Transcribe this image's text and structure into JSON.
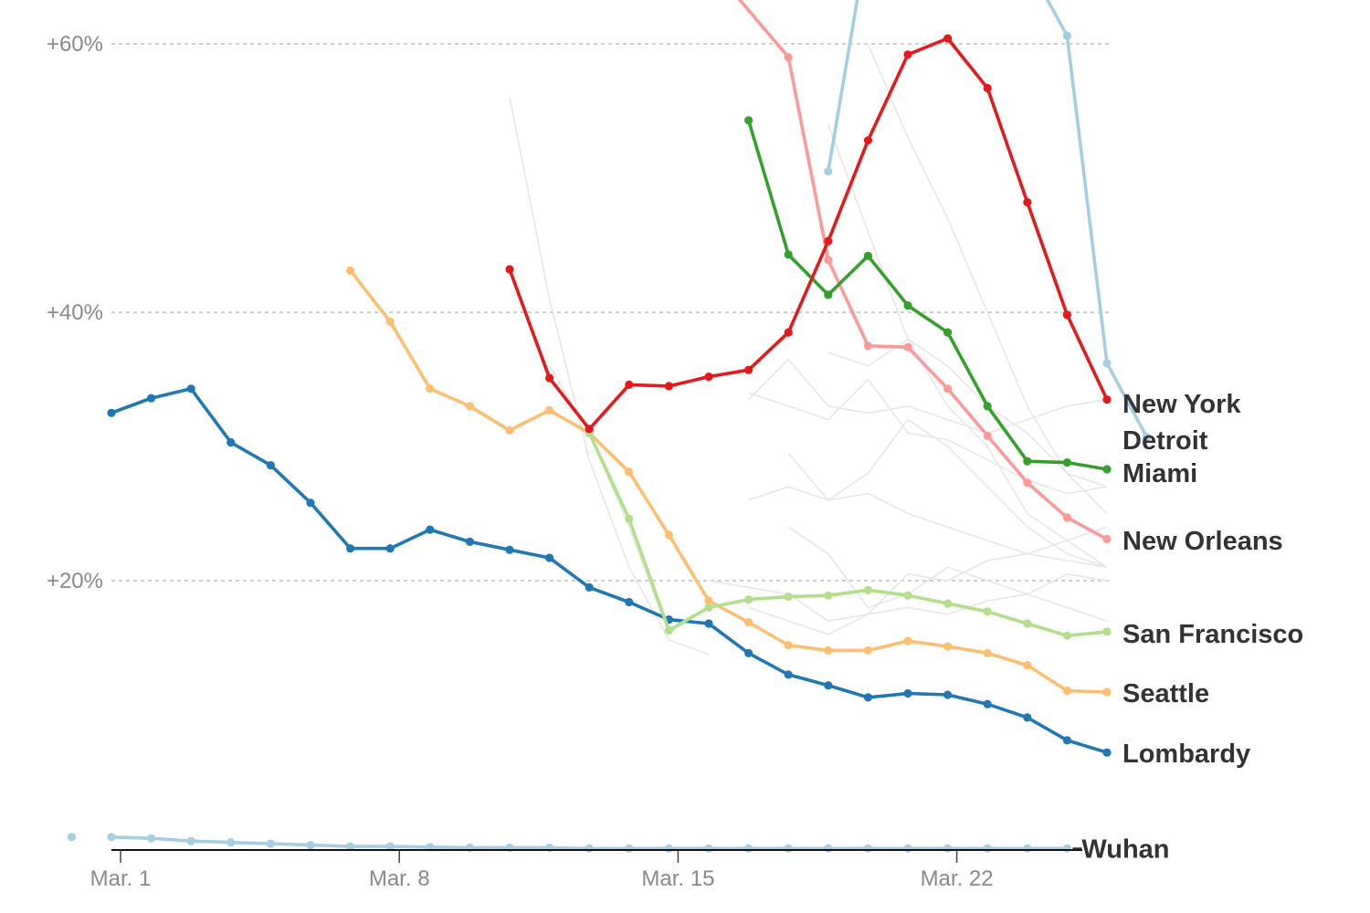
{
  "chart_data": {
    "type": "line",
    "x_unit": "date",
    "xlim": [
      "2020-02-29",
      "2020-03-29"
    ],
    "ylim": [
      0,
      61
    ],
    "y_ticks": [
      {
        "value": 20,
        "label": "+20%"
      },
      {
        "value": 40,
        "label": "+40%"
      },
      {
        "value": 60,
        "label": "+60%"
      }
    ],
    "x_ticks": [
      {
        "date": "2020-03-01",
        "label": "Mar. 1"
      },
      {
        "date": "2020-03-08",
        "label": "Mar. 8"
      },
      {
        "date": "2020-03-15",
        "label": "Mar. 15"
      },
      {
        "date": "2020-03-22",
        "label": "Mar. 22"
      }
    ],
    "grid": true,
    "legend": "inline-right",
    "series": [
      {
        "name": "New York",
        "color": "#e31a1c",
        "points": [
          [
            "2020-03-11",
            43.2
          ],
          [
            "2020-03-12",
            35.1
          ],
          [
            "2020-03-13",
            31.3
          ],
          [
            "2020-03-14",
            34.6
          ],
          [
            "2020-03-15",
            34.5
          ],
          [
            "2020-03-16",
            35.2
          ],
          [
            "2020-03-17",
            35.7
          ],
          [
            "2020-03-18",
            38.5
          ],
          [
            "2020-03-19",
            45.3
          ],
          [
            "2020-03-20",
            52.8
          ],
          [
            "2020-03-21",
            59.2
          ],
          [
            "2020-03-22",
            60.4
          ],
          [
            "2020-03-23",
            56.7
          ],
          [
            "2020-03-24",
            48.2
          ],
          [
            "2020-03-25",
            39.8
          ],
          [
            "2020-03-26",
            33.5
          ]
        ]
      },
      {
        "name": "Detroit",
        "color": "#a6cee3",
        "points": [
          [
            "2020-03-19",
            50.5
          ],
          [
            "2020-03-20",
            68.0
          ],
          [
            "2020-03-24",
            66.0
          ],
          [
            "2020-03-25",
            60.6
          ],
          [
            "2020-03-26",
            36.2
          ],
          [
            "2020-03-27",
            30.7
          ]
        ]
      },
      {
        "name": "Miami",
        "color": "#33a02c",
        "points": [
          [
            "2020-03-17",
            54.3
          ],
          [
            "2020-03-18",
            44.3
          ],
          [
            "2020-03-19",
            41.3
          ],
          [
            "2020-03-20",
            44.2
          ],
          [
            "2020-03-21",
            40.5
          ],
          [
            "2020-03-22",
            38.5
          ],
          [
            "2020-03-23",
            33.0
          ],
          [
            "2020-03-24",
            28.9
          ],
          [
            "2020-03-25",
            28.8
          ],
          [
            "2020-03-26",
            28.3
          ]
        ]
      },
      {
        "name": "New Orleans",
        "color": "#fb9a99",
        "points": [
          [
            "2020-03-16",
            66.0
          ],
          [
            "2020-03-18",
            59.0
          ],
          [
            "2020-03-19",
            43.9
          ],
          [
            "2020-03-20",
            37.5
          ],
          [
            "2020-03-21",
            37.4
          ],
          [
            "2020-03-22",
            34.3
          ],
          [
            "2020-03-23",
            30.8
          ],
          [
            "2020-03-24",
            27.3
          ],
          [
            "2020-03-25",
            24.7
          ],
          [
            "2020-03-26",
            23.1
          ]
        ]
      },
      {
        "name": "San Francisco",
        "color": "#b2df8a",
        "points": [
          [
            "2020-03-13",
            31.0
          ],
          [
            "2020-03-14",
            24.6
          ],
          [
            "2020-03-15",
            16.3
          ],
          [
            "2020-03-16",
            18.0
          ],
          [
            "2020-03-17",
            18.6
          ],
          [
            "2020-03-18",
            18.8
          ],
          [
            "2020-03-19",
            18.9
          ],
          [
            "2020-03-20",
            19.3
          ],
          [
            "2020-03-21",
            18.9
          ],
          [
            "2020-03-22",
            18.3
          ],
          [
            "2020-03-23",
            17.7
          ],
          [
            "2020-03-24",
            16.8
          ],
          [
            "2020-03-25",
            15.9
          ],
          [
            "2020-03-26",
            16.2
          ]
        ]
      },
      {
        "name": "Seattle",
        "color": "#fdbf6f",
        "points": [
          [
            "2020-03-07",
            43.1
          ],
          [
            "2020-03-08",
            39.3
          ],
          [
            "2020-03-09",
            34.3
          ],
          [
            "2020-03-10",
            33.0
          ],
          [
            "2020-03-11",
            31.2
          ],
          [
            "2020-03-12",
            32.7
          ],
          [
            "2020-03-13",
            31.0
          ],
          [
            "2020-03-14",
            28.1
          ],
          [
            "2020-03-15",
            23.4
          ],
          [
            "2020-03-16",
            18.5
          ],
          [
            "2020-03-17",
            16.9
          ],
          [
            "2020-03-18",
            15.2
          ],
          [
            "2020-03-19",
            14.8
          ],
          [
            "2020-03-20",
            14.8
          ],
          [
            "2020-03-21",
            15.5
          ],
          [
            "2020-03-22",
            15.1
          ],
          [
            "2020-03-23",
            14.6
          ],
          [
            "2020-03-24",
            13.7
          ],
          [
            "2020-03-25",
            11.8
          ],
          [
            "2020-03-26",
            11.7
          ]
        ]
      },
      {
        "name": "Lombardy",
        "color": "#1f78b4",
        "points": [
          [
            "2020-03-01",
            32.5
          ],
          [
            "2020-03-02",
            33.6
          ],
          [
            "2020-03-03",
            34.3
          ],
          [
            "2020-03-04",
            30.3
          ],
          [
            "2020-03-05",
            28.6
          ],
          [
            "2020-03-06",
            25.8
          ],
          [
            "2020-03-07",
            22.4
          ],
          [
            "2020-03-08",
            22.4
          ],
          [
            "2020-03-09",
            23.8
          ],
          [
            "2020-03-10",
            22.9
          ],
          [
            "2020-03-11",
            22.3
          ],
          [
            "2020-03-12",
            21.7
          ],
          [
            "2020-03-13",
            19.5
          ],
          [
            "2020-03-14",
            18.4
          ],
          [
            "2020-03-15",
            17.1
          ],
          [
            "2020-03-16",
            16.8
          ],
          [
            "2020-03-17",
            14.6
          ],
          [
            "2020-03-18",
            13.0
          ],
          [
            "2020-03-19",
            12.2
          ],
          [
            "2020-03-20",
            11.3
          ],
          [
            "2020-03-21",
            11.6
          ],
          [
            "2020-03-22",
            11.5
          ],
          [
            "2020-03-23",
            10.8
          ],
          [
            "2020-03-24",
            9.8
          ],
          [
            "2020-03-25",
            8.1
          ],
          [
            "2020-03-26",
            7.2
          ]
        ]
      },
      {
        "name": "Wuhan",
        "color": "#a6cee3",
        "points": [
          [
            "2020-03-01",
            0.9
          ],
          [
            "2020-03-02",
            0.8
          ],
          [
            "2020-03-03",
            0.6
          ],
          [
            "2020-03-04",
            0.5
          ],
          [
            "2020-03-05",
            0.4
          ],
          [
            "2020-03-06",
            0.3
          ],
          [
            "2020-03-07",
            0.2
          ],
          [
            "2020-03-08",
            0.2
          ],
          [
            "2020-03-09",
            0.15
          ],
          [
            "2020-03-10",
            0.1
          ],
          [
            "2020-03-11",
            0.1
          ],
          [
            "2020-03-12",
            0.1
          ],
          [
            "2020-03-13",
            0.05
          ],
          [
            "2020-03-14",
            0.05
          ],
          [
            "2020-03-15",
            0.05
          ],
          [
            "2020-03-16",
            0.05
          ],
          [
            "2020-03-17",
            0.05
          ],
          [
            "2020-03-18",
            0.05
          ],
          [
            "2020-03-19",
            0.05
          ],
          [
            "2020-03-20",
            0.05
          ],
          [
            "2020-03-21",
            0.05
          ],
          [
            "2020-03-22",
            0.05
          ],
          [
            "2020-03-23",
            0.05
          ],
          [
            "2020-03-24",
            0.05
          ],
          [
            "2020-03-25",
            0.05
          ]
        ],
        "isolated_point": [
          "2020-02-29",
          0.9
        ]
      }
    ],
    "background_series_color": "#e6e6e6",
    "background_series": [
      [
        [
          "2020-03-12",
          36.0
        ],
        [
          "2020-03-13",
          31.0
        ],
        [
          "2020-03-14",
          24.0
        ],
        [
          "2020-03-15",
          16.0
        ]
      ],
      [
        [
          "2020-03-11",
          56.0
        ],
        [
          "2020-03-12",
          41.0
        ],
        [
          "2020-03-13",
          29.0
        ],
        [
          "2020-03-14",
          21.0
        ],
        [
          "2020-03-15",
          15.6
        ],
        [
          "2020-03-16",
          14.5
        ]
      ],
      [
        [
          "2020-03-19",
          54.0
        ],
        [
          "2020-03-20",
          46.0
        ],
        [
          "2020-03-21",
          38.0
        ],
        [
          "2020-03-22",
          33.0
        ],
        [
          "2020-03-23",
          30.0
        ],
        [
          "2020-03-24",
          25.0
        ],
        [
          "2020-03-25",
          23.0
        ],
        [
          "2020-03-26",
          21.0
        ]
      ],
      [
        [
          "2020-03-20",
          60.0
        ],
        [
          "2020-03-21",
          53.0
        ],
        [
          "2020-03-22",
          47.0
        ],
        [
          "2020-03-23",
          40.0
        ],
        [
          "2020-03-24",
          33.0
        ],
        [
          "2020-03-25",
          28.0
        ],
        [
          "2020-03-26",
          27.0
        ]
      ],
      [
        [
          "2020-03-17",
          34.0
        ],
        [
          "2020-03-18",
          33.0
        ],
        [
          "2020-03-19",
          32.0
        ],
        [
          "2020-03-20",
          35.0
        ],
        [
          "2020-03-21",
          31.0
        ],
        [
          "2020-03-22",
          30.5
        ],
        [
          "2020-03-23",
          29.0
        ],
        [
          "2020-03-24",
          27.5
        ],
        [
          "2020-03-25",
          26.5
        ],
        [
          "2020-03-26",
          27.0
        ]
      ],
      [
        [
          "2020-03-17",
          26.0
        ],
        [
          "2020-03-18",
          27.0
        ],
        [
          "2020-03-19",
          26.0
        ],
        [
          "2020-03-20",
          26.5
        ],
        [
          "2020-03-21",
          25.0
        ],
        [
          "2020-03-22",
          24.0
        ],
        [
          "2020-03-23",
          23.0
        ],
        [
          "2020-03-24",
          22.0
        ],
        [
          "2020-03-25",
          21.5
        ],
        [
          "2020-03-26",
          21.0
        ]
      ],
      [
        [
          "2020-03-18",
          29.5
        ],
        [
          "2020-03-19",
          26.0
        ],
        [
          "2020-03-20",
          28.0
        ],
        [
          "2020-03-21",
          32.0
        ],
        [
          "2020-03-22",
          30.0
        ],
        [
          "2020-03-23",
          27.0
        ],
        [
          "2020-03-24",
          24.0
        ],
        [
          "2020-03-25",
          22.0
        ],
        [
          "2020-03-26",
          21.0
        ]
      ],
      [
        [
          "2020-03-19",
          37.0
        ],
        [
          "2020-03-20",
          36.0
        ],
        [
          "2020-03-21",
          38.0
        ],
        [
          "2020-03-22",
          36.0
        ],
        [
          "2020-03-23",
          33.0
        ],
        [
          "2020-03-24",
          31.0
        ],
        [
          "2020-03-25",
          28.0
        ],
        [
          "2020-03-26",
          25.0
        ]
      ],
      [
        [
          "2020-03-16",
          20.0
        ],
        [
          "2020-03-17",
          19.5
        ],
        [
          "2020-03-18",
          19.0
        ],
        [
          "2020-03-19",
          17.0
        ],
        [
          "2020-03-20",
          17.5
        ],
        [
          "2020-03-21",
          20.5
        ],
        [
          "2020-03-22",
          20.0
        ],
        [
          "2020-03-23",
          21.5
        ],
        [
          "2020-03-24",
          22.0
        ],
        [
          "2020-03-25",
          23.0
        ],
        [
          "2020-03-26",
          24.0
        ]
      ],
      [
        [
          "2020-03-18",
          24.0
        ],
        [
          "2020-03-19",
          22.0
        ],
        [
          "2020-03-20",
          18.0
        ],
        [
          "2020-03-21",
          19.0
        ],
        [
          "2020-03-22",
          21.0
        ],
        [
          "2020-03-23",
          20.0
        ],
        [
          "2020-03-24",
          19.0
        ],
        [
          "2020-03-25",
          20.5
        ],
        [
          "2020-03-26",
          20.0
        ]
      ],
      [
        [
          "2020-03-17",
          33.5
        ],
        [
          "2020-03-18",
          36.5
        ],
        [
          "2020-03-19",
          33.0
        ],
        [
          "2020-03-20",
          32.5
        ],
        [
          "2020-03-21",
          33.0
        ],
        [
          "2020-03-22",
          32.0
        ],
        [
          "2020-03-23",
          31.0
        ],
        [
          "2020-03-24",
          32.0
        ],
        [
          "2020-03-25",
          33.0
        ],
        [
          "2020-03-26",
          33.5
        ]
      ],
      [
        [
          "2020-03-17",
          18.0
        ],
        [
          "2020-03-18",
          17.0
        ],
        [
          "2020-03-19",
          16.0
        ],
        [
          "2020-03-20",
          17.5
        ],
        [
          "2020-03-21",
          18.0
        ],
        [
          "2020-03-22",
          17.5
        ],
        [
          "2020-03-23",
          18.5
        ],
        [
          "2020-03-24",
          19.0
        ],
        [
          "2020-03-25",
          18.0
        ],
        [
          "2020-03-26",
          17.0
        ]
      ]
    ]
  }
}
